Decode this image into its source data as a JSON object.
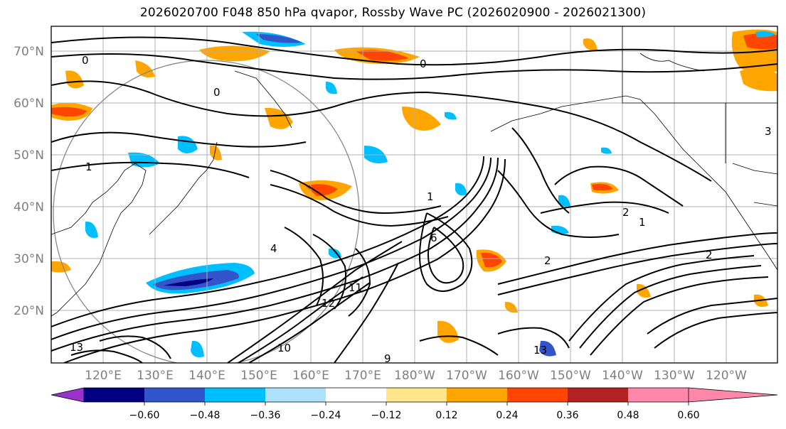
{
  "title": "2026020700 F048 850 hPa qvapor, Rossby Wave PC (2026020900 - 2026021300)",
  "map": {
    "lat_labels": [
      "70°N",
      "60°N",
      "50°N",
      "40°N",
      "30°N",
      "20°N"
    ],
    "lon_labels": [
      "120°E",
      "130°E",
      "140°E",
      "150°E",
      "160°E",
      "170°E",
      "180°W",
      "170°W",
      "160°W",
      "150°W",
      "140°W",
      "130°W",
      "120°W"
    ],
    "contour_labels": [
      "0",
      "0",
      "0",
      "1",
      "1",
      "1",
      "2",
      "2",
      "2",
      "3",
      "4",
      "6",
      "9",
      "10",
      "11",
      "12",
      "13",
      "13"
    ]
  },
  "colorbar": {
    "colors": [
      "#9933cc",
      "#000080",
      "#3355cc",
      "#00bfff",
      "#aee2fa",
      "#ffffff",
      "#ffe68a",
      "#ffa500",
      "#ff4500",
      "#b22222",
      "#ff88aa"
    ],
    "labels": [
      "−0.60",
      "−0.48",
      "−0.36",
      "−0.24",
      "−0.12",
      "0.12",
      "0.24",
      "0.36",
      "0.48",
      "0.60"
    ]
  }
}
